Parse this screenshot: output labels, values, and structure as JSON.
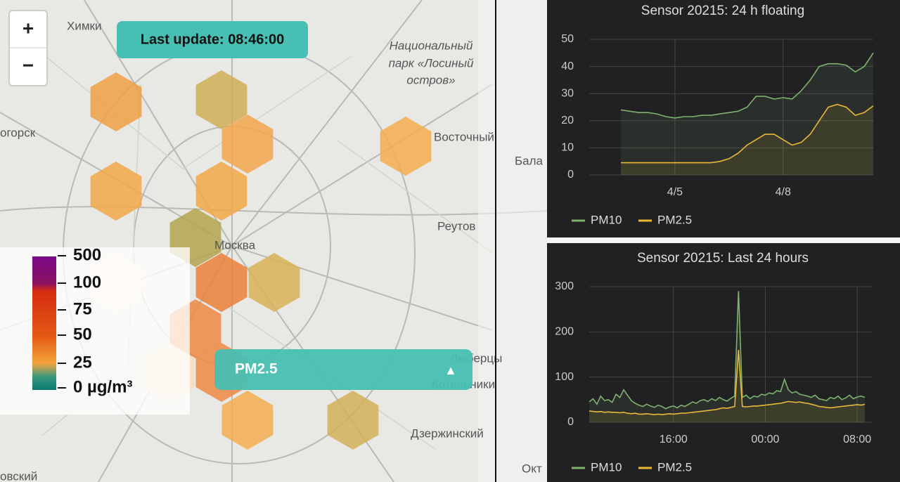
{
  "map": {
    "zoom_in": "+",
    "zoom_out": "−",
    "last_update": "Last update: 08:46:00",
    "places": {
      "khimki": "Химки",
      "park": [
        "Национальный",
        "парк «Лосиный",
        "остров»"
      ],
      "west": "огорск",
      "vostochny": "Восточный",
      "bala": "Бала",
      "moskva": "Москва",
      "reutov": "Реутов",
      "lyubertsy": "Люберцы",
      "kotelniki": "Котельники",
      "dzerzhinsky": "Дзержинский",
      "southwest": "овский",
      "okt": "Окт"
    },
    "selector": "PM2.5",
    "selector_icon": "▲",
    "legend": [
      "500",
      "100",
      "75",
      "50",
      "25",
      "0 µg/m³"
    ]
  },
  "chart_data": [
    {
      "type": "line",
      "title": "Sensor 20215: 24 h floating",
      "categories": [
        null,
        null,
        null,
        null,
        null,
        null,
        "4/5",
        null,
        null,
        null,
        null,
        null,
        null,
        null,
        null,
        null,
        null,
        null,
        "4/8",
        null,
        null,
        null,
        null,
        null,
        null,
        null,
        null,
        null,
        null
      ],
      "series": [
        {
          "name": "PM10",
          "color": "#7eb26d",
          "values": [
            24,
            23.5,
            23,
            23,
            22.5,
            21.5,
            21,
            21.5,
            21.5,
            22,
            22,
            22.5,
            23,
            23.5,
            25,
            29,
            29,
            28,
            28.5,
            28,
            31,
            35,
            40,
            41,
            41,
            40.5,
            38,
            40,
            45
          ]
        },
        {
          "name": "PM2.5",
          "color": "#eab839",
          "values": [
            4.5,
            4.5,
            4.5,
            4.5,
            4.5,
            4.5,
            4.5,
            4.5,
            4.5,
            4.5,
            4.5,
            5,
            6,
            8,
            11,
            13,
            15,
            15,
            13,
            11,
            12,
            15,
            20,
            25,
            26,
            25,
            22,
            23,
            25.5
          ]
        }
      ],
      "ylim": [
        0,
        50
      ],
      "yticks": [
        0,
        10,
        20,
        30,
        40,
        50
      ],
      "grid": true
    },
    {
      "type": "line",
      "title": "Sensor 20215: Last 24 hours",
      "categories": [
        null,
        null,
        null,
        null,
        null,
        null,
        null,
        null,
        null,
        null,
        null,
        null,
        null,
        null,
        null,
        null,
        null,
        null,
        null,
        null,
        null,
        null,
        "16:00",
        null,
        null,
        null,
        null,
        null,
        null,
        null,
        null,
        null,
        null,
        null,
        null,
        null,
        null,
        null,
        null,
        null,
        null,
        null,
        null,
        null,
        null,
        null,
        "00:00",
        null,
        null,
        null,
        null,
        null,
        null,
        null,
        null,
        null,
        null,
        null,
        null,
        null,
        null,
        null,
        null,
        null,
        null,
        null,
        null,
        null,
        null,
        null,
        "08:00",
        null,
        null
      ],
      "series": [
        {
          "name": "PM10",
          "color": "#7eb26d",
          "values": [
            45,
            52,
            40,
            58,
            48,
            50,
            44,
            62,
            55,
            72,
            60,
            48,
            42,
            38,
            35,
            40,
            36,
            33,
            38,
            35,
            30,
            34,
            36,
            32,
            38,
            35,
            40,
            45,
            42,
            48,
            50,
            46,
            52,
            48,
            55,
            50,
            47,
            53,
            58,
            290,
            55,
            60,
            52,
            58,
            56,
            62,
            60,
            65,
            63,
            70,
            68,
            95,
            72,
            65,
            68,
            62,
            60,
            58,
            55,
            60,
            52,
            50,
            48,
            55,
            52,
            58,
            50,
            54,
            60,
            52,
            56,
            58,
            55
          ]
        },
        {
          "name": "PM2.5",
          "color": "#eab839",
          "values": [
            25,
            24,
            23,
            24,
            22,
            23,
            22,
            22,
            21,
            22,
            20,
            19,
            20,
            18,
            18,
            19,
            18,
            17,
            18,
            17,
            18,
            19,
            18,
            19,
            20,
            20,
            21,
            22,
            23,
            24,
            25,
            26,
            27,
            28,
            30,
            32,
            31,
            33,
            35,
            160,
            35,
            34,
            35,
            36,
            36,
            37,
            38,
            39,
            40,
            41,
            42,
            44,
            46,
            45,
            44,
            45,
            43,
            42,
            40,
            38,
            35,
            34,
            33,
            32,
            33,
            34,
            35,
            36,
            37,
            38,
            39,
            38,
            40
          ]
        }
      ],
      "ylim": [
        0,
        300
      ],
      "yticks": [
        0,
        100,
        200,
        300
      ],
      "grid": true
    }
  ]
}
